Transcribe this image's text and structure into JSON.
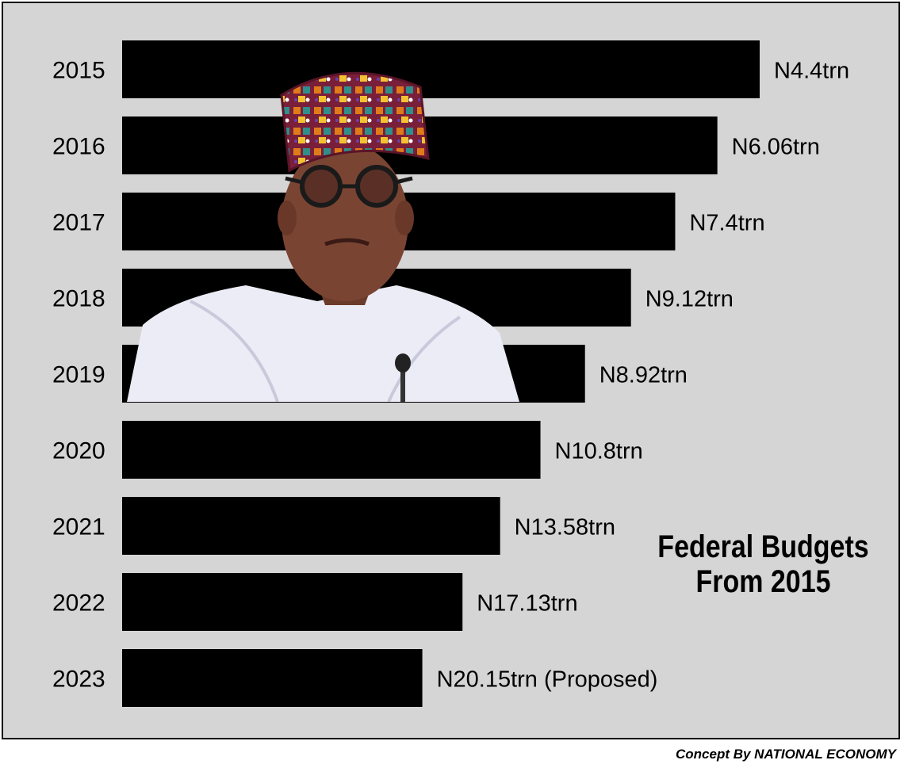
{
  "chart_data": {
    "type": "bar",
    "orientation": "horizontal",
    "title": "Federal Budgets From 2015",
    "title_lines": [
      "Federal Budgets",
      "From 2015"
    ],
    "categories": [
      "2015",
      "2016",
      "2017",
      "2018",
      "2019",
      "2020",
      "2021",
      "2022",
      "2023"
    ],
    "values": [
      4.4,
      6.06,
      7.4,
      9.12,
      8.92,
      10.8,
      13.58,
      17.13,
      20.15
    ],
    "data_labels": [
      "N4.4trn",
      "N6.06trn",
      "N7.4trn",
      "N9.12trn",
      "N8.92trn",
      "N10.8trn",
      "N13.58trn",
      "N17.13trn",
      "N20.15trn (Proposed)"
    ],
    "bar_color": "#000000",
    "background_color": "#d5d5d5",
    "grid": false,
    "legend": "none"
  },
  "credit": "Concept By NATIONAL ECONOMY",
  "image": {
    "icon": "portrait-photo"
  }
}
